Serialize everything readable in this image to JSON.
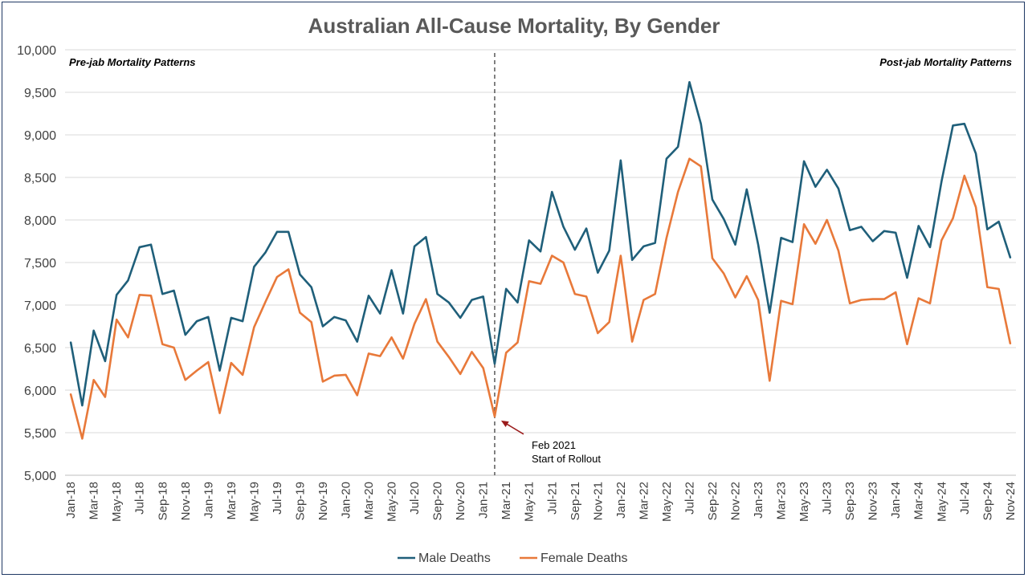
{
  "chart_data": {
    "type": "line",
    "title": "Australian All-Cause Mortality, By Gender",
    "ylim": [
      5000,
      10000
    ],
    "yticks": [
      5000,
      5500,
      6000,
      6500,
      7000,
      7500,
      8000,
      8500,
      9000,
      9500,
      10000
    ],
    "ytick_labels": [
      "5,000",
      "5,500",
      "6,000",
      "6,500",
      "7,000",
      "7,500",
      "8,000",
      "8,500",
      "9,000",
      "9,500",
      "10,000"
    ],
    "x": [
      "Jan-18",
      "Feb-18",
      "Mar-18",
      "Apr-18",
      "May-18",
      "Jun-18",
      "Jul-18",
      "Aug-18",
      "Sep-18",
      "Oct-18",
      "Nov-18",
      "Dec-18",
      "Jan-19",
      "Feb-19",
      "Mar-19",
      "Apr-19",
      "May-19",
      "Jun-19",
      "Jul-19",
      "Aug-19",
      "Sep-19",
      "Oct-19",
      "Nov-19",
      "Dec-19",
      "Jan-20",
      "Feb-20",
      "Mar-20",
      "Apr-20",
      "May-20",
      "Jun-20",
      "Jul-20",
      "Aug-20",
      "Sep-20",
      "Oct-20",
      "Nov-20",
      "Dec-20",
      "Jan-21",
      "Feb-21",
      "Mar-21",
      "Apr-21",
      "May-21",
      "Jun-21",
      "Jul-21",
      "Aug-21",
      "Sep-21",
      "Oct-21",
      "Nov-21",
      "Dec-21",
      "Jan-22",
      "Feb-22",
      "Mar-22",
      "Apr-22",
      "May-22",
      "Jun-22",
      "Jul-22",
      "Aug-22",
      "Sep-22",
      "Oct-22",
      "Nov-22",
      "Dec-22",
      "Jan-23",
      "Feb-23",
      "Mar-23",
      "Apr-23",
      "May-23",
      "Jun-23",
      "Jul-23",
      "Aug-23",
      "Sep-23",
      "Oct-23",
      "Nov-23",
      "Dec-23",
      "Jan-24",
      "Feb-24",
      "Mar-24",
      "Apr-24",
      "May-24",
      "Jun-24",
      "Jul-24",
      "Aug-24",
      "Sep-24",
      "Oct-24",
      "Nov-24"
    ],
    "x_tick_labels": [
      "Jan-18",
      "Mar-18",
      "May-18",
      "Jul-18",
      "Sep-18",
      "Nov-18",
      "Jan-19",
      "Mar-19",
      "May-19",
      "Jul-19",
      "Sep-19",
      "Nov-19",
      "Jan-20",
      "Mar-20",
      "May-20",
      "Jul-20",
      "Sep-20",
      "Nov-20",
      "Jan-21",
      "Mar-21",
      "May-21",
      "Jul-21",
      "Sep-21",
      "Nov-21",
      "Jan-22",
      "Mar-22",
      "May-22",
      "Jul-22",
      "Sep-22",
      "Nov-22",
      "Jan-23",
      "Mar-23",
      "May-23",
      "Jul-23",
      "Sep-23",
      "Nov-23",
      "Jan-24",
      "Mar-24",
      "May-24",
      "Jul-24",
      "Sep-24",
      "Nov-24"
    ],
    "series": [
      {
        "name": "Male Deaths",
        "color": "#1f5f7a",
        "values": [
          6560,
          5820,
          6700,
          6340,
          7120,
          7290,
          7680,
          7710,
          7130,
          7170,
          6650,
          6810,
          6860,
          6230,
          6850,
          6810,
          7450,
          7620,
          7860,
          7860,
          7360,
          7210,
          6750,
          6860,
          6820,
          6570,
          7110,
          6900,
          7410,
          6900,
          7690,
          7800,
          7130,
          7030,
          6850,
          7060,
          7100,
          6310,
          7190,
          7030,
          7760,
          7630,
          8330,
          7920,
          7650,
          7900,
          7380,
          7640,
          8700,
          7530,
          7690,
          7730,
          8720,
          8860,
          9620,
          9130,
          8240,
          8010,
          7710,
          8360,
          7710,
          6910,
          7790,
          7740,
          8690,
          8390,
          8590,
          8370,
          7880,
          7920,
          7750,
          7870,
          7850,
          7320,
          7930,
          7680,
          8450,
          9110,
          9130,
          8780,
          7890,
          7980,
          7560
        ]
      },
      {
        "name": "Female Deaths",
        "color": "#e8793a",
        "values": [
          5950,
          5430,
          6120,
          5920,
          6830,
          6620,
          7120,
          7110,
          6540,
          6500,
          6120,
          6230,
          6330,
          5730,
          6320,
          6180,
          6740,
          7040,
          7330,
          7420,
          6910,
          6800,
          6100,
          6170,
          6180,
          5940,
          6430,
          6400,
          6620,
          6370,
          6780,
          7070,
          6570,
          6390,
          6190,
          6450,
          6260,
          5690,
          6440,
          6560,
          7280,
          7250,
          7580,
          7500,
          7130,
          7100,
          6670,
          6800,
          7580,
          6570,
          7060,
          7130,
          7790,
          8330,
          8720,
          8630,
          7550,
          7370,
          7090,
          7340,
          7060,
          6110,
          7050,
          7010,
          7950,
          7720,
          8000,
          7640,
          7020,
          7060,
          7070,
          7070,
          7150,
          6540,
          7080,
          7020,
          7760,
          8020,
          8520,
          8150,
          7210,
          7190,
          6550
        ]
      }
    ],
    "annotations": {
      "left": "Pre-jab Mortality Patterns",
      "right": "Post-jab Mortality Patterns",
      "rollout_line_1": "Feb 2021",
      "rollout_line_2": "Start of Rollout",
      "rollout_index": 37
    },
    "divider_color": "#595959",
    "arrow_color": "#9b1c1c",
    "legend_position": "bottom-center",
    "grid": true
  }
}
